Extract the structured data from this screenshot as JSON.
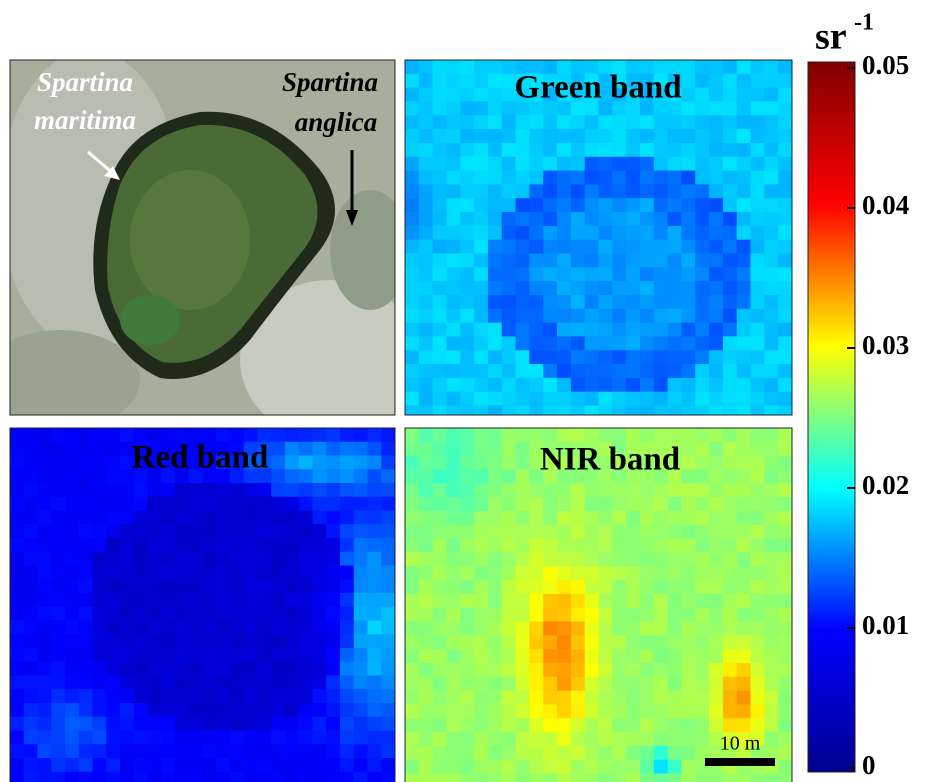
{
  "panels": [
    {
      "labels": [
        "Spartina",
        "maritima",
        "Spartina",
        "anglica"
      ]
    },
    {
      "title": "Green band"
    },
    {
      "title": "Red band"
    },
    {
      "title": "NIR band",
      "scale_bar": "10 m"
    }
  ],
  "colorbar": {
    "unit_base": "sr",
    "unit_exponent": "-1",
    "lim": [
      0,
      0.05
    ],
    "ticks": [
      0,
      0.01,
      0.02,
      0.03,
      0.04,
      0.05
    ],
    "colormap": [
      "#00008f",
      "#0000ff",
      "#00ffff",
      "#ffff00",
      "#ff0000",
      "#800000"
    ]
  }
}
